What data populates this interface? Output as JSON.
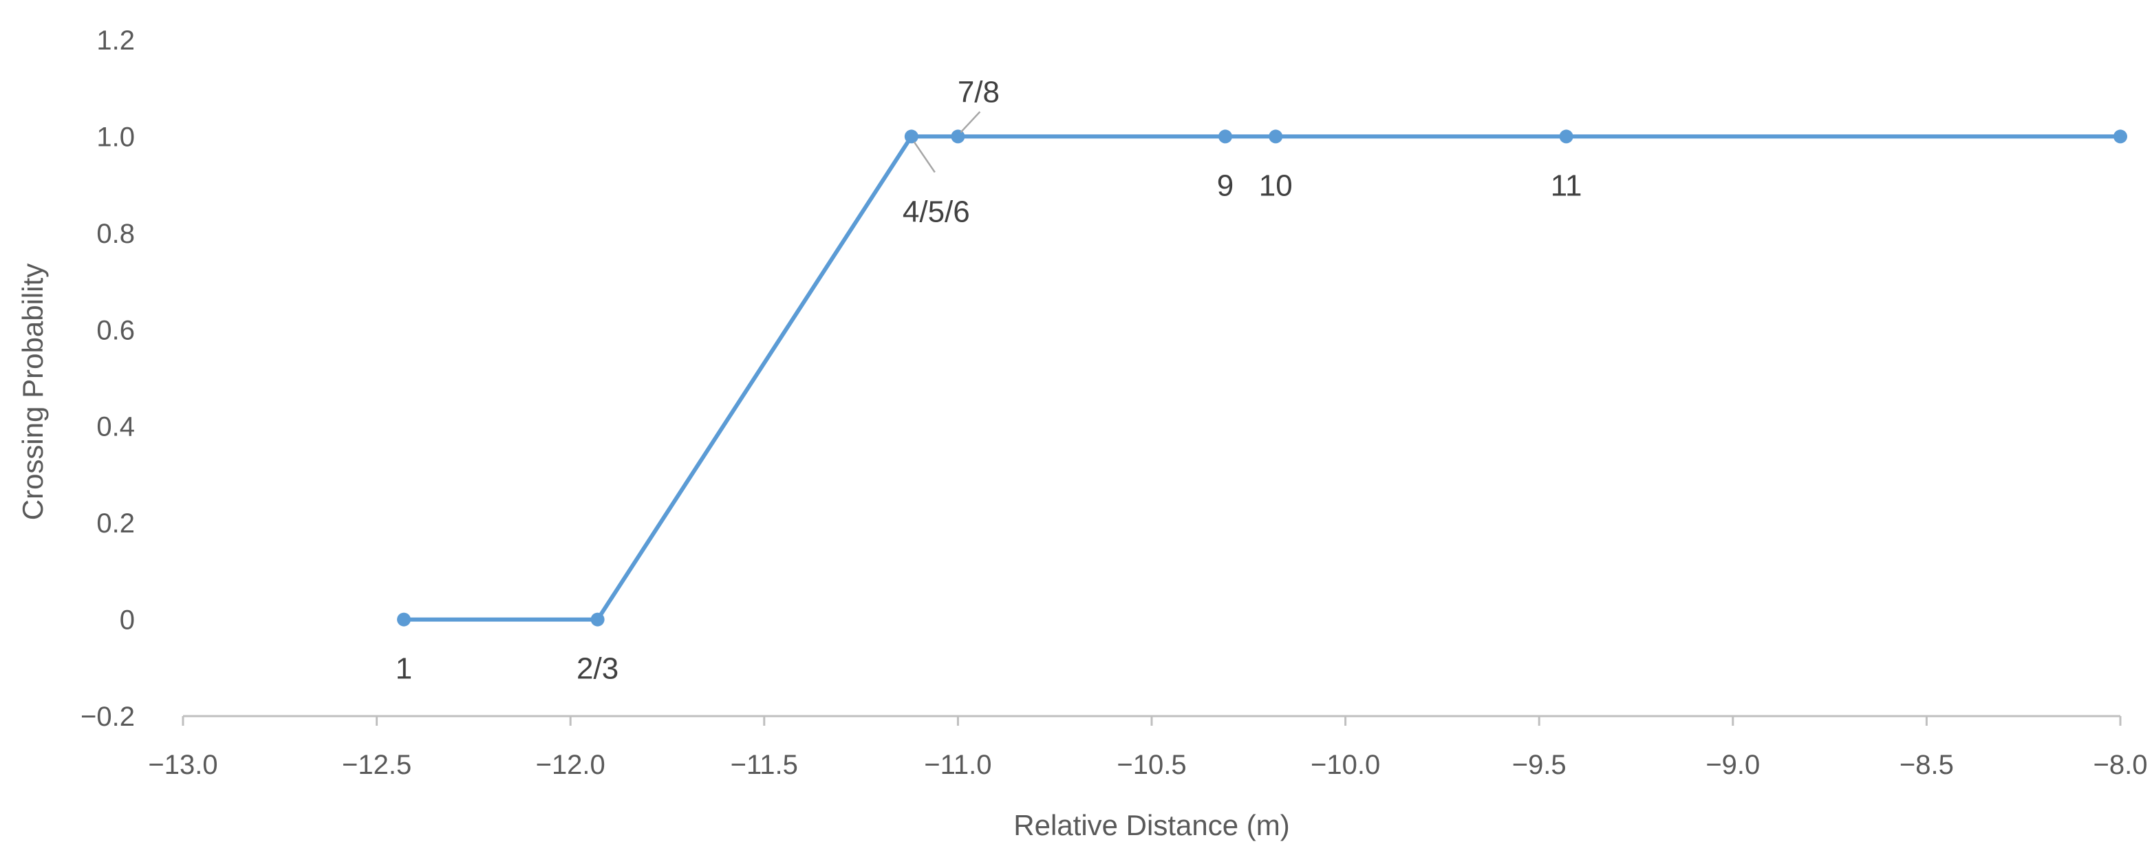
{
  "chart_data": {
    "type": "line",
    "xlabel": "Relative Distance (m)",
    "ylabel": "Crossing Probability",
    "xlim": [
      -13.0,
      -8.0
    ],
    "ylim": [
      -0.2,
      1.2
    ],
    "x_ticks": [
      -13.0,
      -12.5,
      -12.0,
      -11.5,
      -11.0,
      -10.5,
      -10.0,
      -9.5,
      -9.0,
      -8.5,
      -8.0
    ],
    "x_tick_labels": [
      "−13.0",
      "−12.5",
      "−12.0",
      "−11.5",
      "−11.0",
      "−10.5",
      "−10.0",
      "−9.5",
      "−9.0",
      "−8.5",
      "−8.0"
    ],
    "y_ticks": [
      -0.2,
      0,
      0.2,
      0.4,
      0.6,
      0.8,
      1.0,
      1.2
    ],
    "y_tick_labels": [
      "−0.2",
      "0",
      "0.2",
      "0.4",
      "0.6",
      "0.8",
      "1.0",
      "1.2"
    ],
    "grid": false,
    "legend": "none",
    "series": [
      {
        "color": "#5b9bd5",
        "points": [
          {
            "x": -12.43,
            "y": 0
          },
          {
            "x": -11.93,
            "y": 0
          },
          {
            "x": -11.12,
            "y": 1.0
          },
          {
            "x": -11.0,
            "y": 1.0
          },
          {
            "x": -10.31,
            "y": 1.0
          },
          {
            "x": -10.18,
            "y": 1.0
          },
          {
            "x": -9.43,
            "y": 1.0
          },
          {
            "x": -8.0,
            "y": 1.0
          }
        ]
      }
    ],
    "annotations": [
      {
        "text": "1",
        "x": -12.43,
        "y": 0,
        "position": "below"
      },
      {
        "text": "2/3",
        "x": -11.93,
        "y": 0,
        "position": "below"
      },
      {
        "text": "4/5/6",
        "x": -11.12,
        "y": 1.0,
        "position": "below-right",
        "leader": true
      },
      {
        "text": "7/8",
        "x": -11.0,
        "y": 1.0,
        "position": "above-right",
        "leader": true
      },
      {
        "text": "9",
        "x": -10.31,
        "y": 1.0,
        "position": "below"
      },
      {
        "text": "10",
        "x": -10.18,
        "y": 1.0,
        "position": "below"
      },
      {
        "text": "11",
        "x": -9.43,
        "y": 1.0,
        "position": "below"
      }
    ]
  }
}
